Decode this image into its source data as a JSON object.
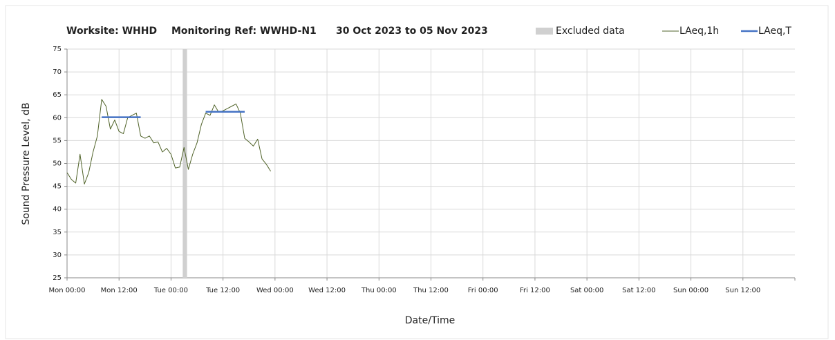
{
  "chart_data": {
    "type": "line",
    "worksite": "Worksite: WHHD",
    "monitoring_ref": "Monitoring Ref: WWHD-N1",
    "period": "30 Oct 2023 to 05 Nov 2023",
    "xlabel": "Date/Time",
    "ylabel": "Sound Pressure Level, dB",
    "xlim": [
      0,
      168
    ],
    "xticks": [
      {
        "value": 0,
        "label": "Mon 00:00"
      },
      {
        "value": 12,
        "label": "Mon 12:00"
      },
      {
        "value": 24,
        "label": "Tue 00:00"
      },
      {
        "value": 36,
        "label": "Tue 12:00"
      },
      {
        "value": 48,
        "label": "Wed 00:00"
      },
      {
        "value": 60,
        "label": "Wed 12:00"
      },
      {
        "value": 72,
        "label": "Thu 00:00"
      },
      {
        "value": 84,
        "label": "Thu 12:00"
      },
      {
        "value": 96,
        "label": "Fri 00:00"
      },
      {
        "value": 108,
        "label": "Fri 12:00"
      },
      {
        "value": 120,
        "label": "Sat 00:00"
      },
      {
        "value": 132,
        "label": "Sat 12:00"
      },
      {
        "value": 144,
        "label": "Sun 00:00"
      },
      {
        "value": 156,
        "label": "Sun 12:00"
      }
    ],
    "ylim": [
      25,
      75
    ],
    "yticks": [
      25,
      30,
      35,
      40,
      45,
      50,
      55,
      60,
      65,
      70,
      75
    ],
    "grid": true,
    "legend": "top-right",
    "excluded": {
      "name": "Excluded data",
      "color": "#d0d0d0",
      "start": 26.7,
      "end": 27.7
    },
    "x": [
      0,
      1,
      2,
      3,
      4,
      5,
      6,
      7,
      8,
      9,
      10,
      11,
      12,
      13,
      14,
      15,
      16,
      17,
      18,
      19,
      20,
      21,
      22,
      23,
      24,
      25,
      26,
      27,
      28,
      29,
      30,
      31,
      32,
      33,
      34,
      35,
      36,
      37,
      38,
      39,
      40,
      41,
      42,
      43,
      44,
      45,
      46,
      47
    ],
    "series": [
      {
        "name": "LAeq,1h",
        "color": "#4f6228",
        "width": 1,
        "values": [
          48,
          46.5,
          45.7,
          52,
          45.5,
          48,
          52.5,
          56,
          64,
          62.5,
          57.5,
          59.5,
          57,
          56.5,
          60,
          60.5,
          61,
          56,
          55.5,
          56,
          54.5,
          54.7,
          52.5,
          53.3,
          52,
          49,
          49.2,
          53.5,
          48.7,
          52,
          54.5,
          58.5,
          61,
          60.5,
          62.8,
          61.2,
          61.5,
          62,
          62.5,
          63,
          61,
          55.5,
          54.7,
          53.8,
          55.3,
          51,
          49.8,
          48.3
        ]
      },
      {
        "name": "LAeq,T",
        "color": "#4472c4",
        "width": 2.5,
        "values": [
          null,
          null,
          null,
          null,
          null,
          null,
          null,
          null,
          60.1,
          60.1,
          60.1,
          60.1,
          60.1,
          60.1,
          60.1,
          60.1,
          60.1,
          60.1,
          null,
          null,
          null,
          null,
          null,
          null,
          null,
          null,
          null,
          null,
          null,
          null,
          null,
          null,
          61.3,
          61.3,
          61.3,
          61.3,
          61.3,
          61.3,
          61.3,
          61.3,
          61.3,
          61.3,
          null,
          null,
          null,
          null,
          null,
          null
        ]
      }
    ]
  }
}
